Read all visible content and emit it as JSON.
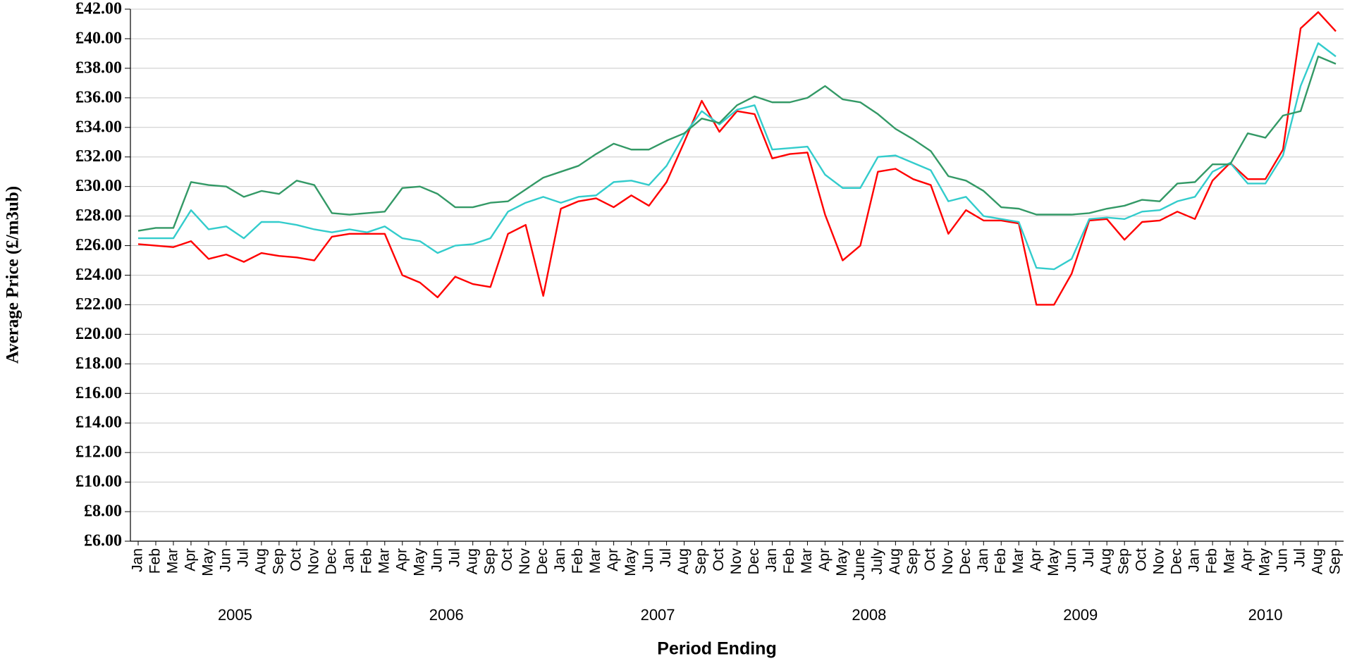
{
  "chart_data": {
    "type": "line",
    "xlabel": "Period Ending",
    "ylabel": "Average Price (£/m3ub)",
    "categories": [
      "Jan",
      "Feb",
      "Mar",
      "Apr",
      "May",
      "Jun",
      "Jul",
      "Aug",
      "Sep",
      "Oct",
      "Nov",
      "Dec",
      "Jan",
      "Feb",
      "Mar",
      "Apr",
      "May",
      "Jun",
      "Jul",
      "Aug",
      "Sep",
      "Oct",
      "Nov",
      "Dec",
      "Jan",
      "Feb",
      "Mar",
      "Apr",
      "May",
      "Jun",
      "Jul",
      "Aug",
      "Sep",
      "Oct",
      "Nov",
      "Dec",
      "Jan",
      "Feb",
      "Mar",
      "Apr",
      "May",
      "June",
      "July",
      "Aug",
      "Sep",
      "Oct",
      "Nov",
      "Dec",
      "Jan",
      "Feb",
      "Mar",
      "Apr",
      "May",
      "Jun",
      "Jul",
      "Aug",
      "Sep",
      "Oct",
      "Nov",
      "Dec",
      "Jan",
      "Feb",
      "Mar",
      "Apr",
      "May",
      "Jun",
      "Jul",
      "Aug",
      "Sep"
    ],
    "years": [
      "2005",
      "2006",
      "2007",
      "2008",
      "2009",
      "2010"
    ],
    "series": [
      {
        "color": "#ff0000",
        "values": [
          26.1,
          26.0,
          25.9,
          26.3,
          25.1,
          25.4,
          24.9,
          25.5,
          25.3,
          25.2,
          25.0,
          26.6,
          26.8,
          26.8,
          26.8,
          24.0,
          23.5,
          22.5,
          23.9,
          23.4,
          23.2,
          26.8,
          27.4,
          22.6,
          28.5,
          29.0,
          29.2,
          28.6,
          29.4,
          28.7,
          30.3,
          33.0,
          35.8,
          33.7,
          35.1,
          34.9,
          31.9,
          32.2,
          32.3,
          28.1,
          25.0,
          26.0,
          31.0,
          31.2,
          30.5,
          30.1,
          26.8,
          28.4,
          27.7,
          27.7,
          27.5,
          22.0,
          22.0,
          24.1,
          27.7,
          27.8,
          26.4,
          27.6,
          27.7,
          28.3,
          27.8,
          30.4,
          31.6,
          30.5,
          30.5,
          32.5,
          40.7,
          41.8,
          40.5
        ]
      },
      {
        "color": "#33cccc",
        "values": [
          26.5,
          26.5,
          26.5,
          28.4,
          27.1,
          27.3,
          26.5,
          27.6,
          27.6,
          27.4,
          27.1,
          26.9,
          27.1,
          26.9,
          27.3,
          26.5,
          26.3,
          25.5,
          26.0,
          26.1,
          26.5,
          28.3,
          28.9,
          29.3,
          28.9,
          29.3,
          29.4,
          30.3,
          30.4,
          30.1,
          31.4,
          33.5,
          35.1,
          34.2,
          35.2,
          35.5,
          32.5,
          32.6,
          32.7,
          30.8,
          29.9,
          29.9,
          32.0,
          32.1,
          31.6,
          31.1,
          29.0,
          29.3,
          28.0,
          27.8,
          27.6,
          24.5,
          24.4,
          25.1,
          27.8,
          27.9,
          27.8,
          28.3,
          28.4,
          29.0,
          29.3,
          31.0,
          31.6,
          30.2,
          30.2,
          32.1,
          36.8,
          39.7,
          38.8
        ]
      },
      {
        "color": "#339966",
        "values": [
          27.0,
          27.2,
          27.2,
          30.3,
          30.1,
          30.0,
          29.3,
          29.7,
          29.5,
          30.4,
          30.1,
          28.2,
          28.1,
          28.2,
          28.3,
          29.9,
          30.0,
          29.5,
          28.6,
          28.6,
          28.9,
          29.0,
          29.8,
          30.6,
          31.0,
          31.4,
          32.2,
          32.9,
          32.5,
          32.5,
          33.1,
          33.6,
          34.6,
          34.3,
          35.5,
          36.1,
          35.7,
          35.7,
          36.0,
          36.8,
          35.9,
          35.7,
          34.9,
          33.9,
          33.2,
          32.4,
          30.7,
          30.4,
          29.7,
          28.6,
          28.5,
          28.1,
          28.1,
          28.1,
          28.2,
          28.5,
          28.7,
          29.1,
          29.0,
          30.2,
          30.3,
          31.5,
          31.5,
          33.6,
          33.3,
          34.8,
          35.1,
          38.8,
          38.3
        ]
      }
    ],
    "ylim": [
      6,
      42
    ],
    "yticks": [
      {
        "value": 6,
        "label": "£6.00"
      },
      {
        "value": 8,
        "label": "£8.00"
      },
      {
        "value": 10,
        "label": "£10.00"
      },
      {
        "value": 12,
        "label": "£12.00"
      },
      {
        "value": 14,
        "label": "£14.00"
      },
      {
        "value": 16,
        "label": "£16.00"
      },
      {
        "value": 18,
        "label": "£18.00"
      },
      {
        "value": 20,
        "label": "£20.00"
      },
      {
        "value": 22,
        "label": "£22.00"
      },
      {
        "value": 24,
        "label": "£24.00"
      },
      {
        "value": 26,
        "label": "£26.00"
      },
      {
        "value": 28,
        "label": "£28.00"
      },
      {
        "value": 30,
        "label": "£30.00"
      },
      {
        "value": 32,
        "label": "£32.00"
      },
      {
        "value": 34,
        "label": "£34.00"
      },
      {
        "value": 36,
        "label": "£36.00"
      },
      {
        "value": 38,
        "label": "£38.00"
      },
      {
        "value": 40,
        "label": "£40.00"
      },
      {
        "value": 42,
        "label": "£42.00"
      }
    ],
    "grid": true
  }
}
